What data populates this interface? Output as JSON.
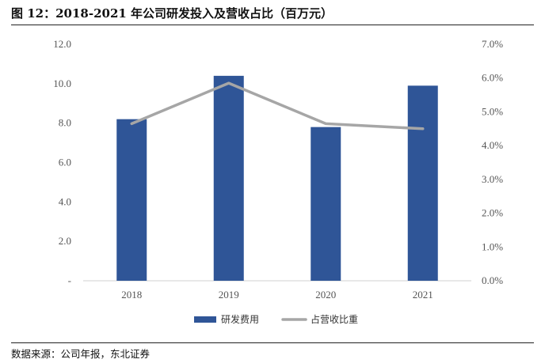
{
  "header": {
    "title": "图 12：2018-2021 年公司研发投入及营收占比（百万元）"
  },
  "footer": {
    "source": "数据来源：公司年报，东北证券"
  },
  "chart_data": {
    "type": "bar",
    "title": "图 12：2018-2021 年公司研发投入及营收占比（百万元）",
    "categories": [
      "2018",
      "2019",
      "2020",
      "2021"
    ],
    "series": [
      {
        "name": "研发费用",
        "type": "bar",
        "axis": "left",
        "color": "#2f5597",
        "values": [
          8.2,
          10.4,
          7.8,
          9.9
        ]
      },
      {
        "name": "占营收比重",
        "type": "line",
        "axis": "right",
        "color": "#a6a6a6",
        "values": [
          4.65,
          5.85,
          4.65,
          4.5
        ]
      }
    ],
    "y_left": {
      "min": 0,
      "max": 12,
      "step": 2,
      "tick_labels": [
        "-",
        "2.0",
        "4.0",
        "6.0",
        "8.0",
        "10.0",
        "12.0"
      ]
    },
    "y_right": {
      "min": 0,
      "max": 7,
      "step": 1,
      "tick_labels": [
        "0.0%",
        "1.0%",
        "2.0%",
        "3.0%",
        "4.0%",
        "5.0%",
        "6.0%",
        "7.0%"
      ]
    },
    "grid": false,
    "legend": "bottom-center"
  }
}
